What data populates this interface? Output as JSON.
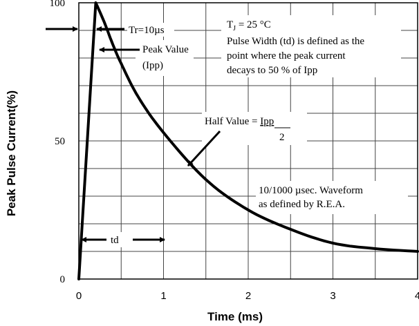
{
  "chart_data": {
    "type": "line",
    "ylabel": "Peak Pulse Current(%)",
    "xlabel": "Time (ms)",
    "xlim": [
      0,
      4
    ],
    "ylim": [
      0,
      100
    ],
    "x_ticks": [
      "0",
      "1",
      "2",
      "3",
      "4"
    ],
    "y_ticks": [
      {
        "value": 0,
        "label": "0"
      },
      {
        "value": 50,
        "label": "50"
      },
      {
        "value": 100,
        "label": "100"
      }
    ],
    "grid": true,
    "series": [
      {
        "x": [
          0,
          0.2,
          0.3,
          0.4,
          0.5,
          0.7,
          1.0,
          1.5,
          2.0,
          2.5,
          3.0,
          3.5,
          4.0
        ],
        "y": [
          0,
          100,
          93,
          85,
          78,
          66,
          53,
          36,
          25,
          18,
          13,
          11,
          10
        ]
      }
    ],
    "annotations": {
      "rise": "Tr=10µs",
      "peak_line1": "Peak Value",
      "peak_line2": "(Ipp)",
      "tj_symbol": "T",
      "tj_subscript": "J",
      "tj_value": " = 25 °C",
      "pulse_width_line1": "Pulse Width (td) is defined as the",
      "pulse_width_line2": "point where the peak current",
      "pulse_width_line3": "decays to 50 % of Ipp",
      "half_value_prefix": "Half Value = ",
      "half_value_numerator": "Ipp",
      "half_value_denominator": "2",
      "waveform_line1": "10/1000 µsec. Waveform",
      "waveform_line2": "as defined by R.E.A.",
      "td": "td"
    }
  }
}
